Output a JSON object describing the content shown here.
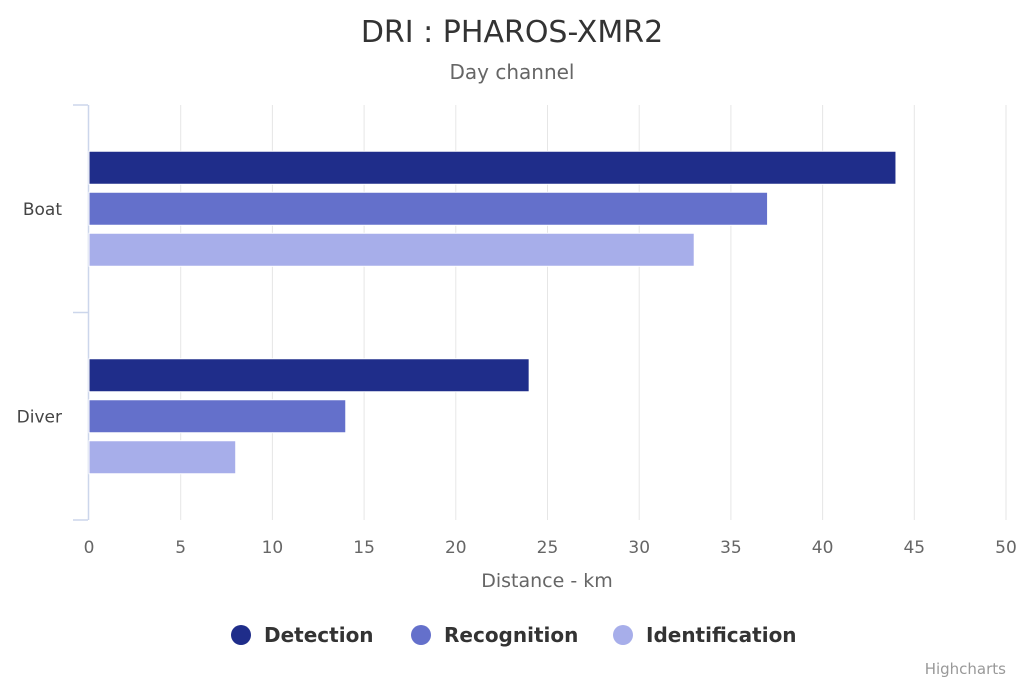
{
  "chart_data": {
    "type": "bar",
    "orientation": "horizontal",
    "title": "DRI : PHAROS-XMR2",
    "subtitle": "Day channel",
    "categories": [
      "Boat",
      "Diver"
    ],
    "series": [
      {
        "name": "Detection",
        "values": [
          44,
          24
        ],
        "color": "#1f2d8a"
      },
      {
        "name": "Recognition",
        "values": [
          37,
          14
        ],
        "color": "#6470cb"
      },
      {
        "name": "Identification",
        "values": [
          33,
          8
        ],
        "color": "#a7aeea"
      }
    ],
    "xlabel": "Distance - km",
    "xlim": [
      0,
      50
    ],
    "xticks": [
      0,
      5,
      10,
      15,
      20,
      25,
      30,
      35,
      40,
      45,
      50
    ],
    "grid": "vertical",
    "legend_position": "bottom",
    "credits": "Highcharts"
  }
}
